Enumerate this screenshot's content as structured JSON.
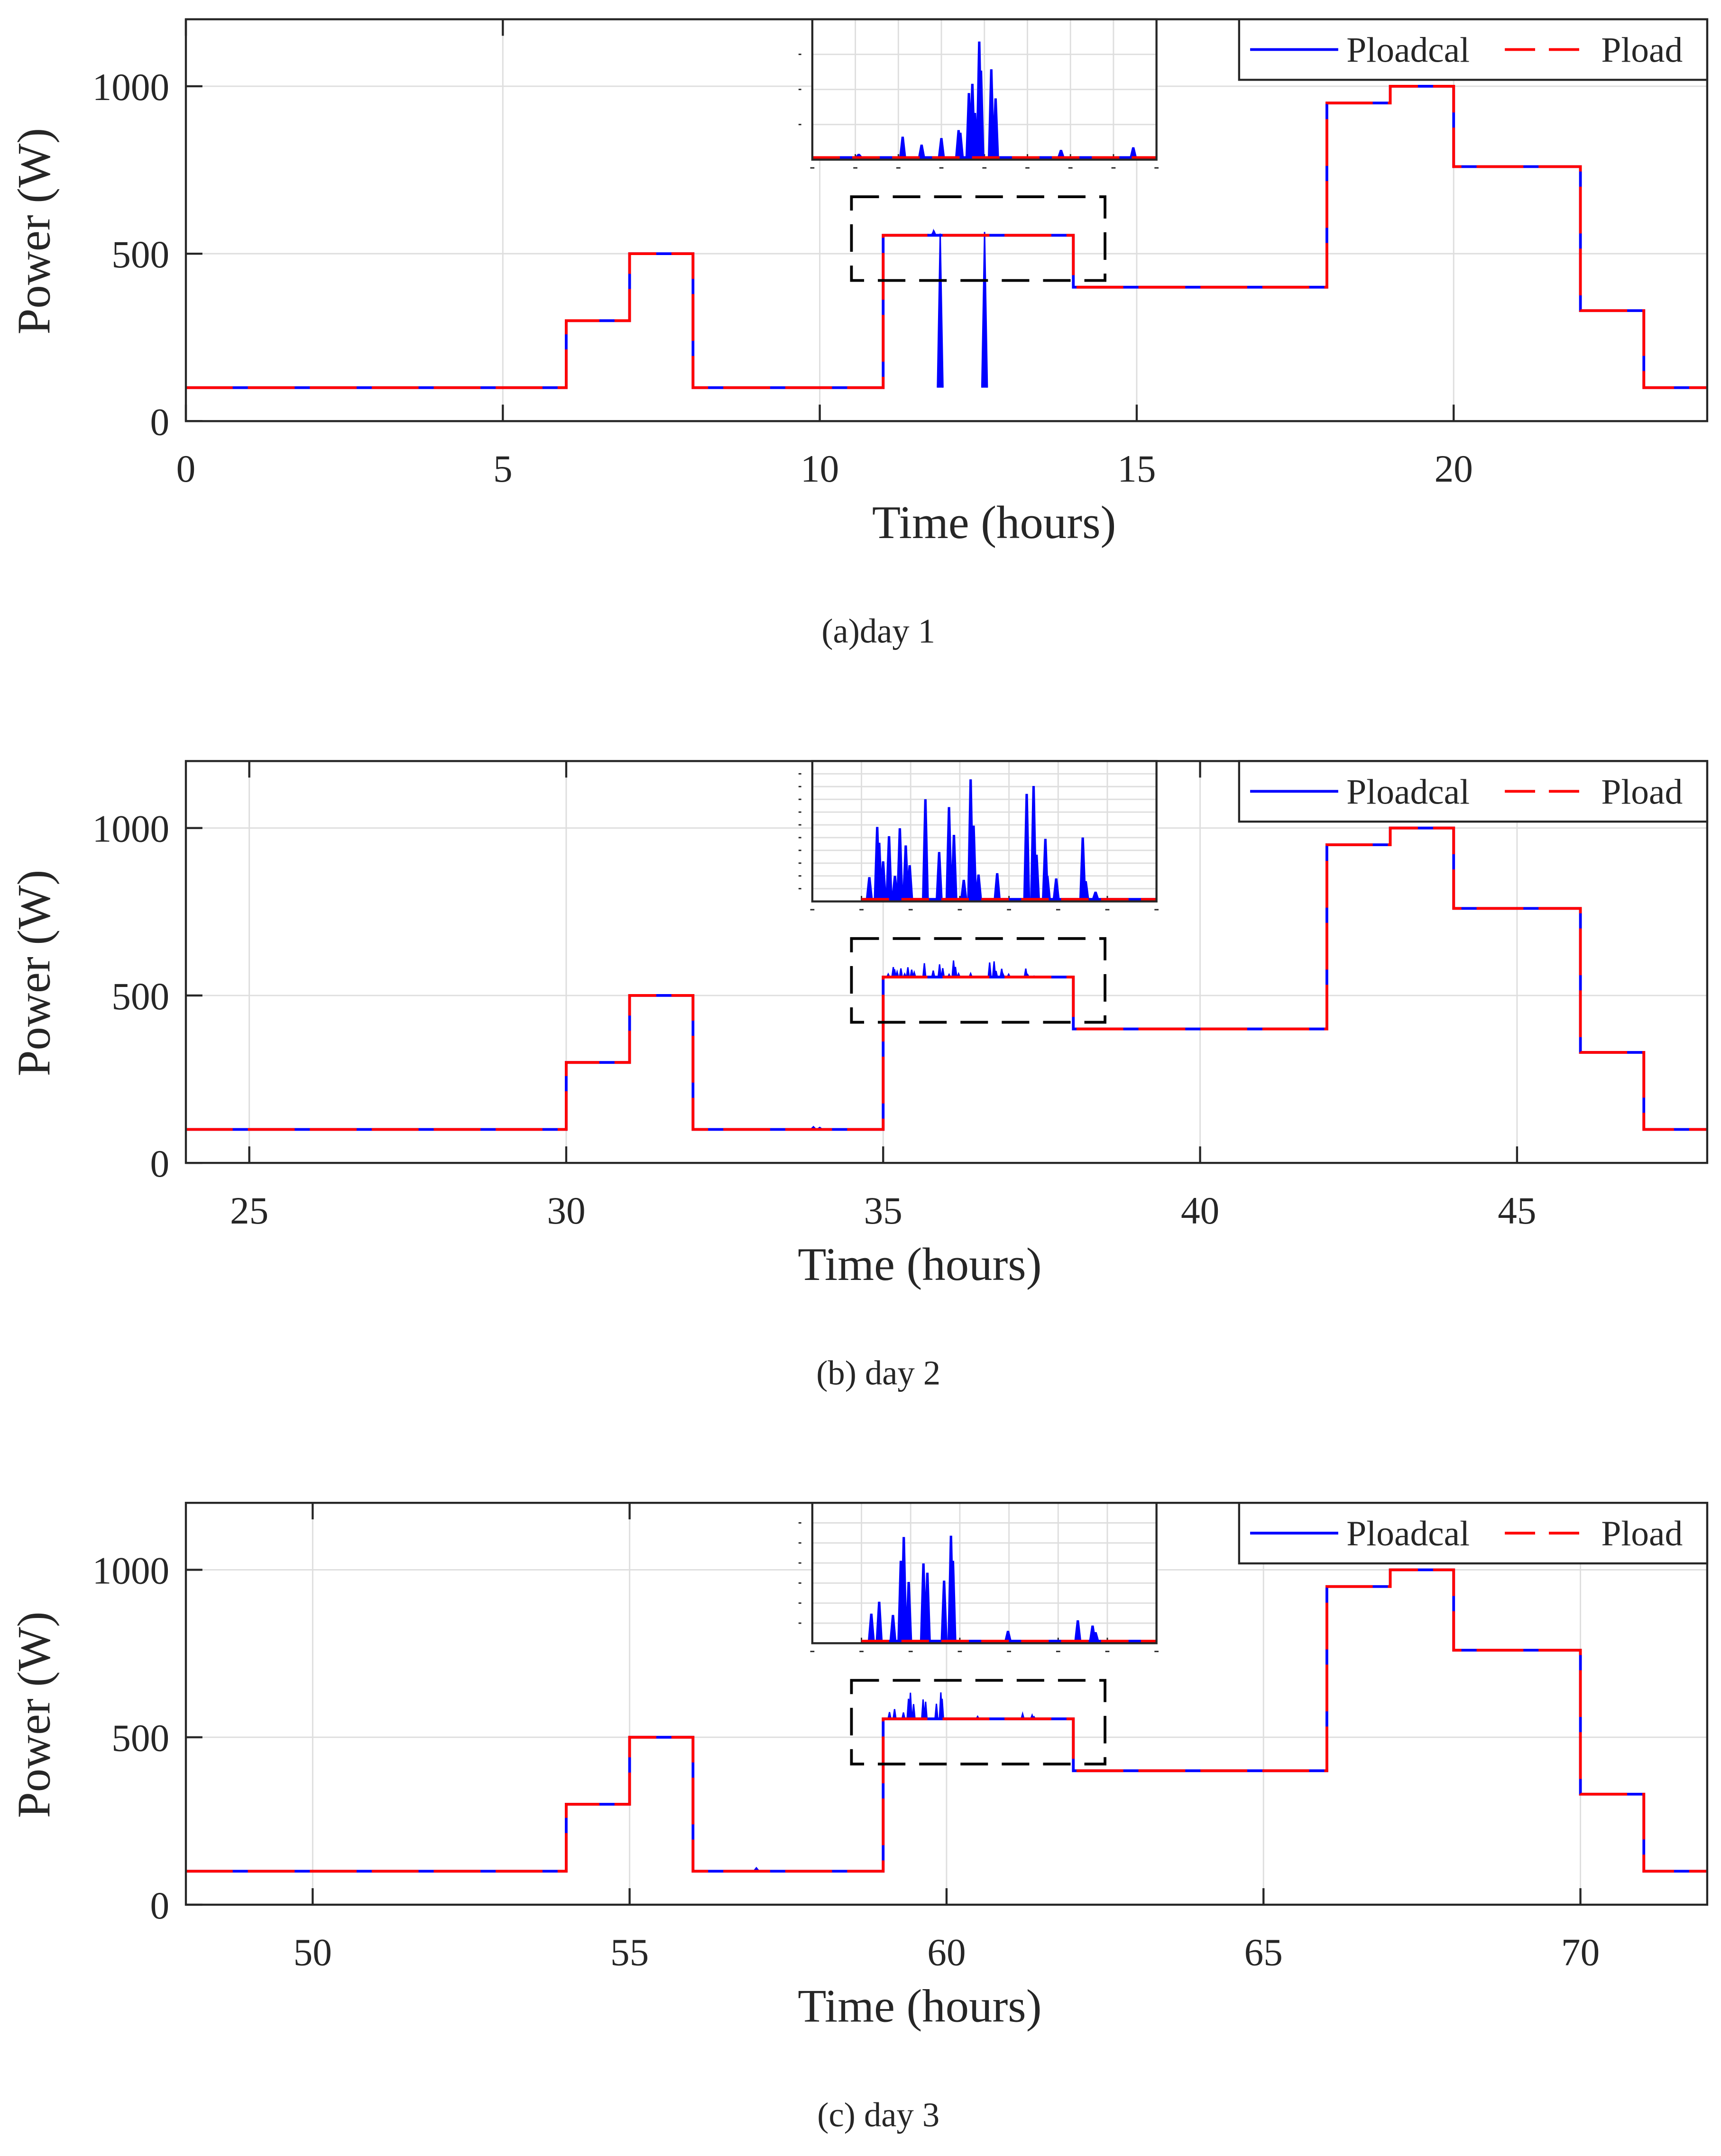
{
  "colors": {
    "Ploadcal": "#0000ff",
    "Pload": "#ff0000",
    "grid": "#dedede",
    "axis": "#262626",
    "zoom_box": "#000000"
  },
  "chart_data": [
    {
      "type": "line",
      "caption": "(a)day 1",
      "xlabel": "Time (hours)",
      "ylabel": "Power (W)",
      "xlim": [
        0,
        24
      ],
      "ylim": [
        0,
        1200
      ],
      "xticks": [
        0,
        5,
        10,
        15,
        20
      ],
      "yticks": [
        0,
        500,
        1000
      ],
      "grid": true,
      "legend": {
        "placement": "top-right",
        "entries": [
          "Ploadcal",
          "Pload"
        ]
      },
      "series": [
        {
          "name": "Ploadcal",
          "style": "solid",
          "steps": [
            [
              0,
              100
            ],
            [
              6,
              300
            ],
            [
              7,
              500
            ],
            [
              8,
              100
            ],
            [
              11,
              555
            ],
            [
              14,
              400
            ],
            [
              18,
              950
            ],
            [
              19,
              1000
            ],
            [
              20,
              760
            ],
            [
              22,
              330
            ],
            [
              23,
              100
            ],
            [
              24,
              100
            ]
          ]
        },
        {
          "name": "Pload",
          "style": "dashed",
          "steps": [
            [
              0,
              100
            ],
            [
              6,
              300
            ],
            [
              7,
              500
            ],
            [
              8,
              100
            ],
            [
              11,
              555
            ],
            [
              14,
              400
            ],
            [
              18,
              950
            ],
            [
              19,
              1000
            ],
            [
              20,
              760
            ],
            [
              22,
              330
            ],
            [
              23,
              100
            ],
            [
              24,
              100
            ]
          ]
        }
      ],
      "minor_bumps": [
        [
          11.9,
          560
        ],
        [
          12.6,
          565
        ]
      ],
      "zoom_region": {
        "x": [
          10.5,
          14.5
        ],
        "y": [
          420,
          670
        ]
      },
      "inset": {
        "xlim": [
          11.6,
          12
        ],
        "xticks": [
          11.6,
          11.65,
          11.7,
          11.75,
          11.8,
          11.85,
          11.9,
          11.95,
          12
        ],
        "y_gridlines": 3,
        "baseline_start": 11.6,
        "peaks_relative_level": [
          [
            11.654,
            0.02
          ],
          [
            11.705,
            0.15
          ],
          [
            11.727,
            0.09
          ],
          [
            11.75,
            0.14
          ],
          [
            11.77,
            0.2
          ],
          [
            11.772,
            0.18
          ],
          [
            11.782,
            0.48
          ],
          [
            11.786,
            0.55
          ],
          [
            11.789,
            0.33
          ],
          [
            11.794,
            0.87
          ],
          [
            11.796,
            0.65
          ],
          [
            11.808,
            0.66
          ],
          [
            11.813,
            0.44
          ],
          [
            11.889,
            0.05
          ],
          [
            11.973,
            0.07
          ]
        ]
      }
    },
    {
      "type": "line",
      "caption": "(b) day 2",
      "xlabel": "Time (hours)",
      "ylabel": "Power (W)",
      "xlim": [
        24,
        48
      ],
      "ylim": [
        0,
        1200
      ],
      "xticks": [
        25,
        30,
        35,
        40,
        45
      ],
      "yticks": [
        0,
        500,
        1000
      ],
      "grid": true,
      "legend": {
        "placement": "top-right",
        "entries": [
          "Ploadcal",
          "Pload"
        ]
      },
      "series": [
        {
          "name": "Ploadcal",
          "style": "solid",
          "steps": [
            [
              24,
              100
            ],
            [
              30,
              300
            ],
            [
              31,
              500
            ],
            [
              32,
              100
            ],
            [
              35,
              555
            ],
            [
              38,
              400
            ],
            [
              42,
              950
            ],
            [
              43,
              1000
            ],
            [
              44,
              760
            ],
            [
              46,
              330
            ],
            [
              47,
              100
            ],
            [
              48,
              100
            ]
          ]
        },
        {
          "name": "Pload",
          "style": "dashed",
          "steps": [
            [
              24,
              100
            ],
            [
              30,
              300
            ],
            [
              31,
              500
            ],
            [
              32,
              100
            ],
            [
              35,
              555
            ],
            [
              38,
              400
            ],
            [
              42,
              950
            ],
            [
              43,
              1000
            ],
            [
              44,
              760
            ],
            [
              46,
              330
            ],
            [
              47,
              100
            ],
            [
              48,
              100
            ]
          ]
        }
      ],
      "minor_bumps": [
        [
          33.9,
          108
        ],
        [
          34.0,
          106
        ]
      ],
      "zoom_region": {
        "x": [
          34.5,
          38.5
        ],
        "y": [
          420,
          670
        ]
      },
      "inset": {
        "xlim": [
          34.5,
          38
        ],
        "xticks": [
          34.5,
          35,
          35.5,
          36,
          36.5,
          37,
          37.5,
          38
        ],
        "y_gridlines": 10,
        "baseline_start": 35,
        "peaks_relative_level": [
          [
            35.08,
            0.16
          ],
          [
            35.16,
            0.54
          ],
          [
            35.18,
            0.42
          ],
          [
            35.22,
            0.28
          ],
          [
            35.28,
            0.47
          ],
          [
            35.34,
            0.17
          ],
          [
            35.39,
            0.53
          ],
          [
            35.45,
            0.4
          ],
          [
            35.49,
            0.25
          ],
          [
            35.65,
            0.75
          ],
          [
            35.79,
            0.35
          ],
          [
            35.89,
            0.69
          ],
          [
            35.94,
            0.48
          ],
          [
            36.04,
            0.14
          ],
          [
            36.11,
            0.9
          ],
          [
            36.14,
            0.55
          ],
          [
            36.19,
            0.18
          ],
          [
            36.38,
            0.19
          ],
          [
            36.68,
            0.79
          ],
          [
            36.75,
            0.85
          ],
          [
            36.78,
            0.33
          ],
          [
            36.87,
            0.45
          ],
          [
            36.89,
            0.17
          ],
          [
            36.98,
            0.15
          ],
          [
            37.25,
            0.46
          ],
          [
            37.28,
            0.13
          ],
          [
            37.38,
            0.05
          ]
        ]
      }
    },
    {
      "type": "line",
      "caption": "(c) day 3",
      "xlabel": "Time (hours)",
      "ylabel": "Power (W)",
      "xlim": [
        48,
        72
      ],
      "ylim": [
        0,
        1200
      ],
      "xticks": [
        50,
        55,
        60,
        65,
        70
      ],
      "yticks": [
        0,
        500,
        1000
      ],
      "grid": true,
      "legend": {
        "placement": "top-right",
        "entries": [
          "Ploadcal",
          "Pload"
        ]
      },
      "series": [
        {
          "name": "Ploadcal",
          "style": "solid",
          "steps": [
            [
              48,
              100
            ],
            [
              54,
              300
            ],
            [
              55,
              500
            ],
            [
              56,
              100
            ],
            [
              59,
              555
            ],
            [
              62,
              400
            ],
            [
              66,
              950
            ],
            [
              67,
              1000
            ],
            [
              68,
              760
            ],
            [
              70,
              330
            ],
            [
              71,
              100
            ],
            [
              72,
              100
            ]
          ]
        },
        {
          "name": "Pload",
          "style": "dashed",
          "steps": [
            [
              48,
              100
            ],
            [
              54,
              300
            ],
            [
              55,
              500
            ],
            [
              56,
              100
            ],
            [
              59,
              555
            ],
            [
              62,
              400
            ],
            [
              66,
              950
            ],
            [
              67,
              1000
            ],
            [
              68,
              760
            ],
            [
              70,
              330
            ],
            [
              71,
              100
            ],
            [
              72,
              100
            ]
          ]
        }
      ],
      "minor_bumps": [
        [
          57.0,
          110
        ]
      ],
      "zoom_region": {
        "x": [
          58.5,
          62.5
        ],
        "y": [
          420,
          670
        ]
      },
      "inset": {
        "xlim": [
          58.5,
          62
        ],
        "xticks": [
          58.5,
          59,
          59.5,
          60,
          60.5,
          61,
          61.5,
          62
        ],
        "y_gridlines": 6,
        "baseline_start": 59,
        "peaks_relative_level": [
          [
            59.1,
            0.2
          ],
          [
            59.18,
            0.29
          ],
          [
            59.32,
            0.19
          ],
          [
            59.4,
            0.6
          ],
          [
            59.43,
            0.78
          ],
          [
            59.48,
            0.44
          ],
          [
            59.63,
            0.58
          ],
          [
            59.67,
            0.51
          ],
          [
            59.84,
            0.45
          ],
          [
            59.91,
            0.79
          ],
          [
            59.93,
            0.6
          ],
          [
            60.49,
            0.07
          ],
          [
            61.2,
            0.15
          ],
          [
            61.35,
            0.11
          ],
          [
            61.38,
            0.06
          ]
        ]
      }
    }
  ]
}
